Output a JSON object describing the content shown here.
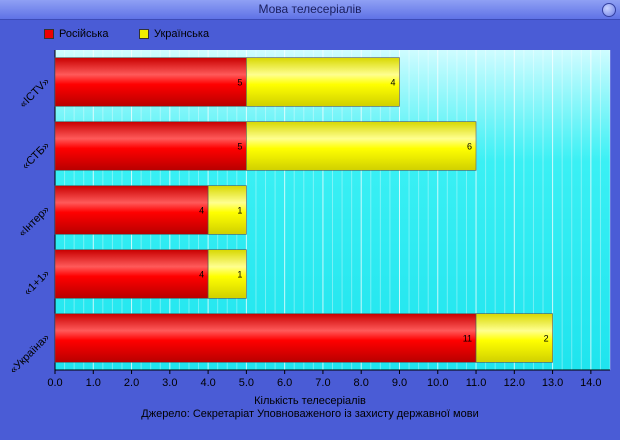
{
  "window": {
    "title": "Мова телесеріалів"
  },
  "chart_data": {
    "type": "bar",
    "orientation": "horizontal",
    "stacked": true,
    "title": "Мова телесеріалів",
    "categories": [
      "«ICTV»",
      "«СТБ»",
      "«Інтер»",
      "«1+1»",
      "«Україна»"
    ],
    "series": [
      {
        "name": "Російська",
        "values": [
          5,
          5,
          4,
          4,
          11
        ],
        "color": "#ee0000"
      },
      {
        "name": "Українська",
        "values": [
          4,
          6,
          1,
          1,
          2
        ],
        "color": "#f0f000"
      }
    ],
    "xlabel": "Кількість телесеріалів",
    "ylabel": "",
    "xlim": [
      0,
      14.5
    ],
    "xticks": [
      "0.0",
      "1.0",
      "2.0",
      "3.0",
      "4.0",
      "5.0",
      "6.0",
      "7.0",
      "8.0",
      "9.0",
      "10.0",
      "11.0",
      "12.0",
      "13.0",
      "14.0"
    ],
    "grid": true,
    "legend_position": "top-left",
    "source_note": "Джерело: Секретаріат Уповноваженого із захисту державної мови"
  }
}
